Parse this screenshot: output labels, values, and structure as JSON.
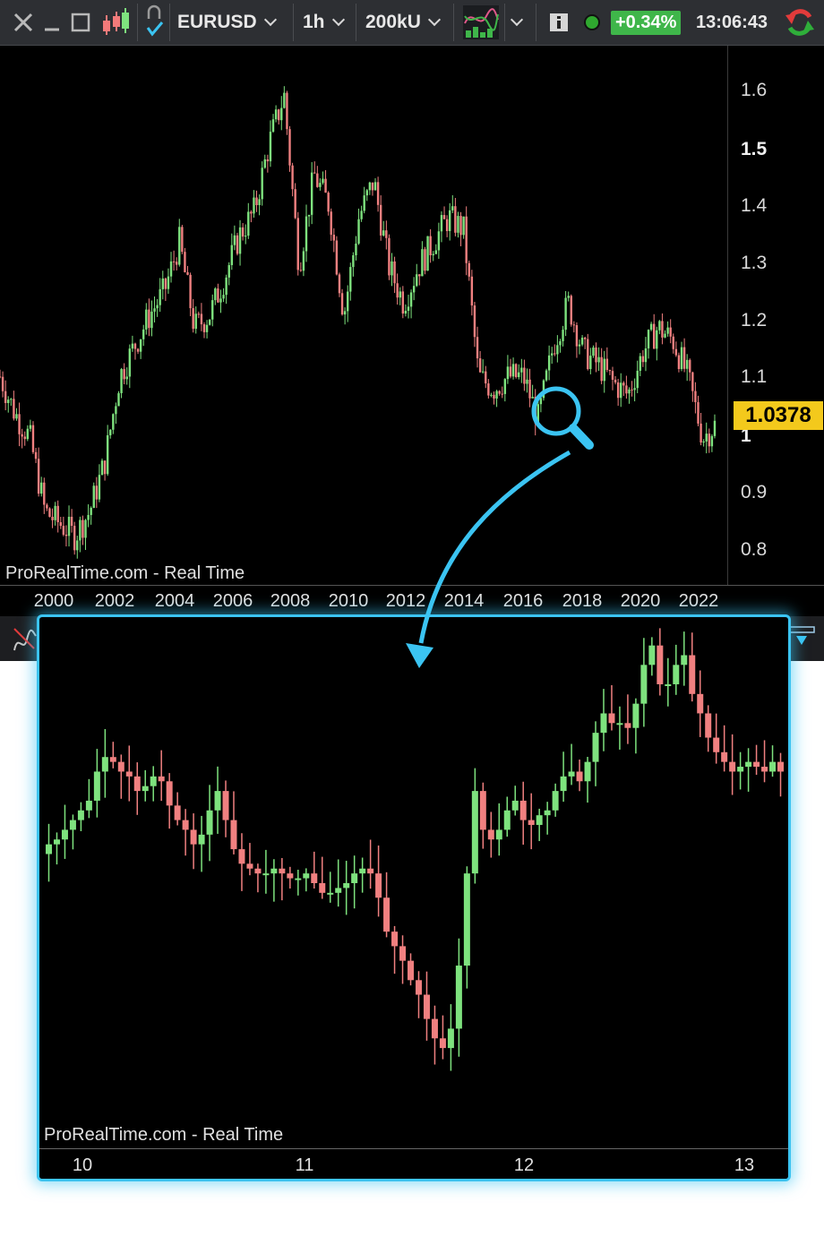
{
  "toolbar": {
    "symbol": "EURUSD",
    "timeframe": "1h",
    "units": "200kU",
    "change": "+0.34%",
    "time": "13:06:43",
    "colors": {
      "up": "#3fb64a",
      "accent": "#3bc4f2",
      "last_price_bg": "#f3c91c"
    }
  },
  "main_chart": {
    "watermark": "ProRealTime.com - Real Time",
    "last_price": "1.0378",
    "price_ticks": [
      "1.6",
      "1.5",
      "1.4",
      "1.3",
      "1.2",
      "1.1",
      "1",
      "0.9",
      "0.8"
    ],
    "time_ticks": [
      "2000",
      "2002",
      "2004",
      "2006",
      "2008",
      "2010",
      "2012",
      "2014",
      "2016",
      "2018",
      "2020",
      "2022"
    ]
  },
  "zoom_chart": {
    "watermark": "ProRealTime.com - Real Time",
    "time_ticks": [
      "10",
      "11",
      "12",
      "13"
    ]
  },
  "chart_data": [
    {
      "type": "candlestick",
      "symbol": "EURUSD",
      "x": [
        1999.0,
        1999.5,
        2000.0,
        2000.5,
        2001.0,
        2001.5,
        2002.0,
        2002.5,
        2003.0,
        2003.5,
        2004.0,
        2004.5,
        2005.0,
        2005.5,
        2006.0,
        2006.5,
        2007.0,
        2007.5,
        2008.0,
        2008.5,
        2009.0,
        2009.5,
        2010.0,
        2010.5,
        2011.0,
        2011.5,
        2012.0,
        2012.5,
        2013.0,
        2013.5,
        2014.0,
        2014.5,
        2015.0,
        2015.5,
        2016.0,
        2016.5,
        2017.0,
        2017.5,
        2018.0,
        2018.5,
        2019.0,
        2019.5,
        2020.0,
        2020.5,
        2021.0,
        2021.5,
        2022.0,
        2022.5,
        2022.9
      ],
      "close": [
        1.12,
        1.06,
        1.02,
        0.9,
        0.88,
        0.86,
        0.9,
        0.98,
        1.12,
        1.17,
        1.22,
        1.26,
        1.34,
        1.2,
        1.22,
        1.28,
        1.35,
        1.39,
        1.5,
        1.58,
        1.3,
        1.45,
        1.4,
        1.22,
        1.38,
        1.44,
        1.3,
        1.24,
        1.3,
        1.34,
        1.38,
        1.36,
        1.12,
        1.1,
        1.12,
        1.12,
        1.05,
        1.17,
        1.24,
        1.16,
        1.14,
        1.11,
        1.09,
        1.16,
        1.2,
        1.18,
        1.12,
        1.02,
        1.04
      ],
      "ylim": [
        0.78,
        1.66
      ],
      "xlim": [
        1999.0,
        2023.2
      ]
    },
    {
      "type": "candlestick",
      "x_ticks": [
        "10",
        "11",
        "12",
        "13"
      ]
    }
  ]
}
